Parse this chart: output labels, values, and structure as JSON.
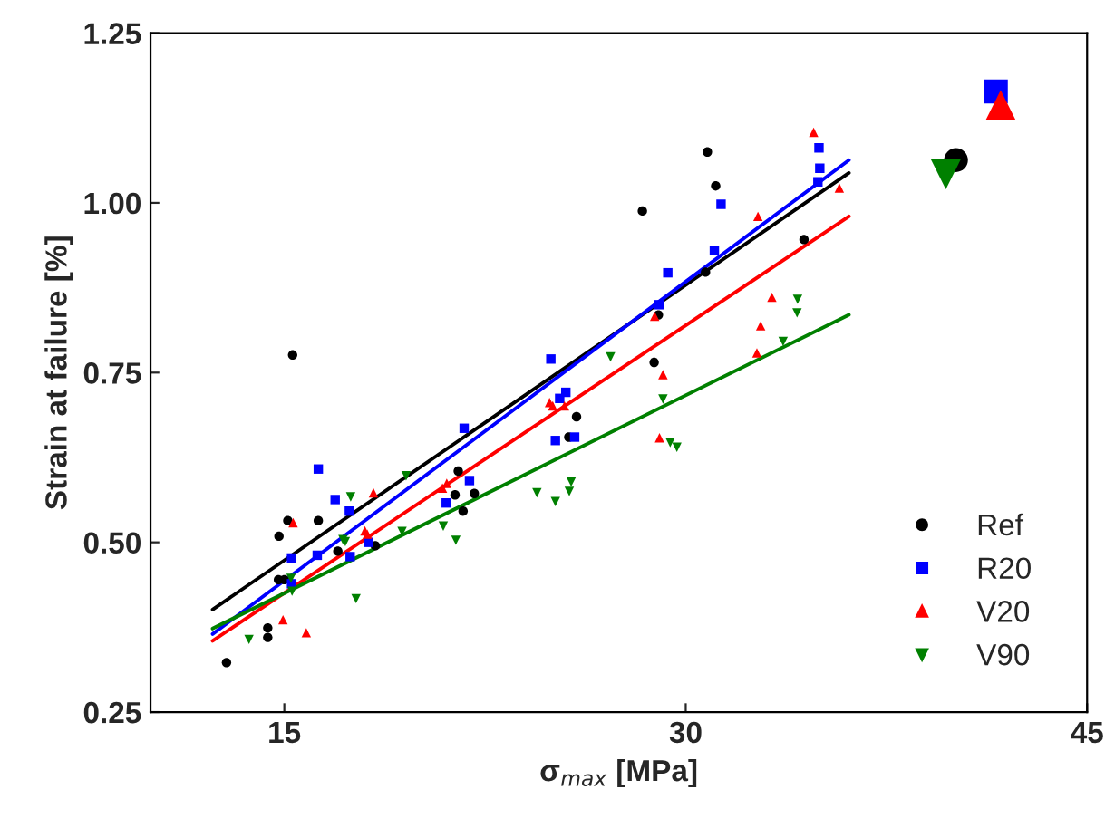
{
  "chart_data": {
    "type": "scatter",
    "xlabel": "σ$_{max}$ [MPa]",
    "ylabel": "Strain at failure [%]",
    "xlim": [
      10,
      45
    ],
    "ylim": [
      0.25,
      1.25
    ],
    "xticks": [
      15,
      30,
      45
    ],
    "yticks": [
      {
        "value": 0.25,
        "label": "0.25"
      },
      {
        "value": 0.5,
        "label": "0.50"
      },
      {
        "value": 0.75,
        "label": "0.75"
      },
      {
        "value": 1.0,
        "label": "1.00"
      },
      {
        "value": 1.25,
        "label": "1.25"
      }
    ],
    "grid": false,
    "legend": "bottom right",
    "series": [
      {
        "name": "Ref",
        "color": "#000000",
        "marker": "circle",
        "x": [
          12.84,
          14.38,
          14.38,
          14.8,
          15.13,
          15.31,
          14.78,
          15.0,
          15.27,
          16.27,
          17.0,
          18.4,
          21.5,
          21.38,
          21.68,
          22.1,
          24.98,
          25.63,
          25.92,
          28.38,
          31.12,
          30.81,
          28.98,
          28.82,
          30.74,
          34.42
        ],
        "values": [
          0.323,
          0.374,
          0.36,
          0.509,
          0.532,
          0.776,
          0.445,
          0.445,
          null,
          0.532,
          0.487,
          0.495,
          0.605,
          0.57,
          0.546,
          0.572,
          null,
          0.655,
          0.685,
          0.988,
          1.025,
          1.075,
          0.835,
          0.765,
          0.898,
          0.946
        ]
      },
      {
        "name": "R20",
        "color": "#0000ff",
        "marker": "square",
        "x": [
          15.27,
          16.23,
          16.27,
          16.9,
          17.43,
          17.46,
          18.15,
          15.27,
          21.72,
          21.92,
          21.05,
          24.96,
          25.29,
          25.52,
          25.13,
          25.85,
          29.0,
          29.33,
          31.07,
          31.32,
          34.98,
          35.01,
          34.94
        ],
        "values": [
          0.477,
          0.481,
          0.608,
          0.563,
          0.546,
          0.479,
          0.5,
          0.439,
          0.668,
          0.591,
          0.558,
          0.77,
          0.712,
          0.721,
          0.65,
          0.655,
          0.85,
          0.897,
          0.93,
          0.998,
          1.081,
          1.051,
          1.031
        ]
      },
      {
        "name": "V20",
        "color": "#ff0000",
        "marker": "triangle",
        "x": [
          14.95,
          15.82,
          15.33,
          18.33,
          18.01,
          18.1,
          20.91,
          21.07,
          24.91,
          25.03,
          25.47,
          28.84,
          29.15,
          29.02,
          34.78,
          32.7,
          35.74,
          33.22,
          32.8,
          32.66
        ],
        "values": [
          0.386,
          0.367,
          0.529,
          0.573,
          0.517,
          0.512,
          0.58,
          0.587,
          0.706,
          0.701,
          0.701,
          0.833,
          0.747,
          0.654,
          1.104,
          0.98,
          1.022,
          0.861,
          0.819,
          0.779
        ]
      },
      {
        "name": "V90",
        "color": "#008000",
        "marker": "triangle_down",
        "x": [
          13.68,
          15.29,
          15.25,
          17.48,
          17.68,
          17.19,
          17.28,
          19.55,
          19.4,
          20.94,
          21.41,
          24.44,
          25.13,
          25.65,
          25.72,
          27.19,
          29.15,
          29.42,
          29.67,
          34.18,
          34.16,
          33.64
        ],
        "values": [
          0.357,
          0.428,
          0.447,
          0.567,
          0.417,
          0.504,
          0.501,
          0.598,
          0.516,
          0.524,
          0.503,
          0.573,
          0.56,
          0.575,
          0.589,
          0.773,
          0.711,
          0.647,
          0.64,
          0.858,
          0.838,
          0.796
        ]
      },
      {
        "color": "#000000",
        "marker": "circle",
        "sizes": [
          1
        ],
        "x": [
          40.1
        ],
        "values": [
          1.063
        ]
      },
      {
        "color": "#0000ff",
        "marker": "square",
        "sizes": [
          1
        ],
        "x": [
          41.59
        ],
        "values": [
          1.164
        ]
      },
      {
        "color": "#ff0000",
        "marker": "triangle",
        "sizes": [
          1
        ],
        "x": [
          41.77
        ],
        "values": [
          1.144
        ]
      },
      {
        "color": "#008000",
        "marker": "triangle_down",
        "sizes": [
          1
        ],
        "x": [
          39.72
        ],
        "values": [
          1.042
        ]
      },
      {
        "type": "line",
        "color": "#000000",
        "x": [
          12.32,
          36.1
        ],
        "values": [
          0.401,
          1.044
        ]
      },
      {
        "type": "line",
        "color": "#0000ff",
        "x": [
          12.32,
          36.1
        ],
        "values": [
          0.365,
          1.063
        ]
      },
      {
        "type": "line",
        "color": "#ff0000",
        "x": [
          12.32,
          36.1
        ],
        "values": [
          0.355,
          0.98
        ]
      },
      {
        "type": "line",
        "color": "#008000",
        "x": [
          12.32,
          36.1
        ],
        "values": [
          0.373,
          0.835
        ]
      }
    ]
  }
}
